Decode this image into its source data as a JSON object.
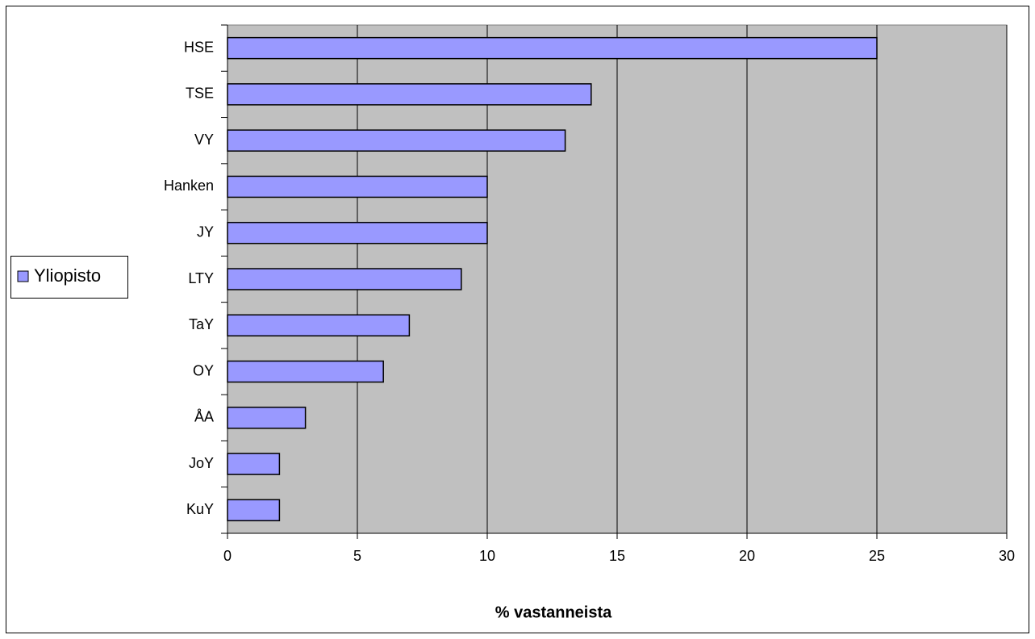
{
  "chart_data": {
    "type": "bar",
    "orientation": "horizontal",
    "categories": [
      "HSE",
      "TSE",
      "VY",
      "Hanken",
      "JY",
      "LTY",
      "TaY",
      "OY",
      "ÅA",
      "JoY",
      "KuY"
    ],
    "series": [
      {
        "name": "Yliopisto",
        "color": "#9999ff",
        "values": [
          25,
          14,
          13,
          10,
          10,
          9,
          7,
          6,
          3,
          2,
          2
        ]
      }
    ],
    "xlabel": "% vastanneista",
    "xlim": [
      0,
      30
    ],
    "xticks": [
      0,
      5,
      10,
      15,
      20,
      25,
      30
    ],
    "grid": true,
    "legend": "left",
    "plot_background": "#c0c0c0"
  }
}
